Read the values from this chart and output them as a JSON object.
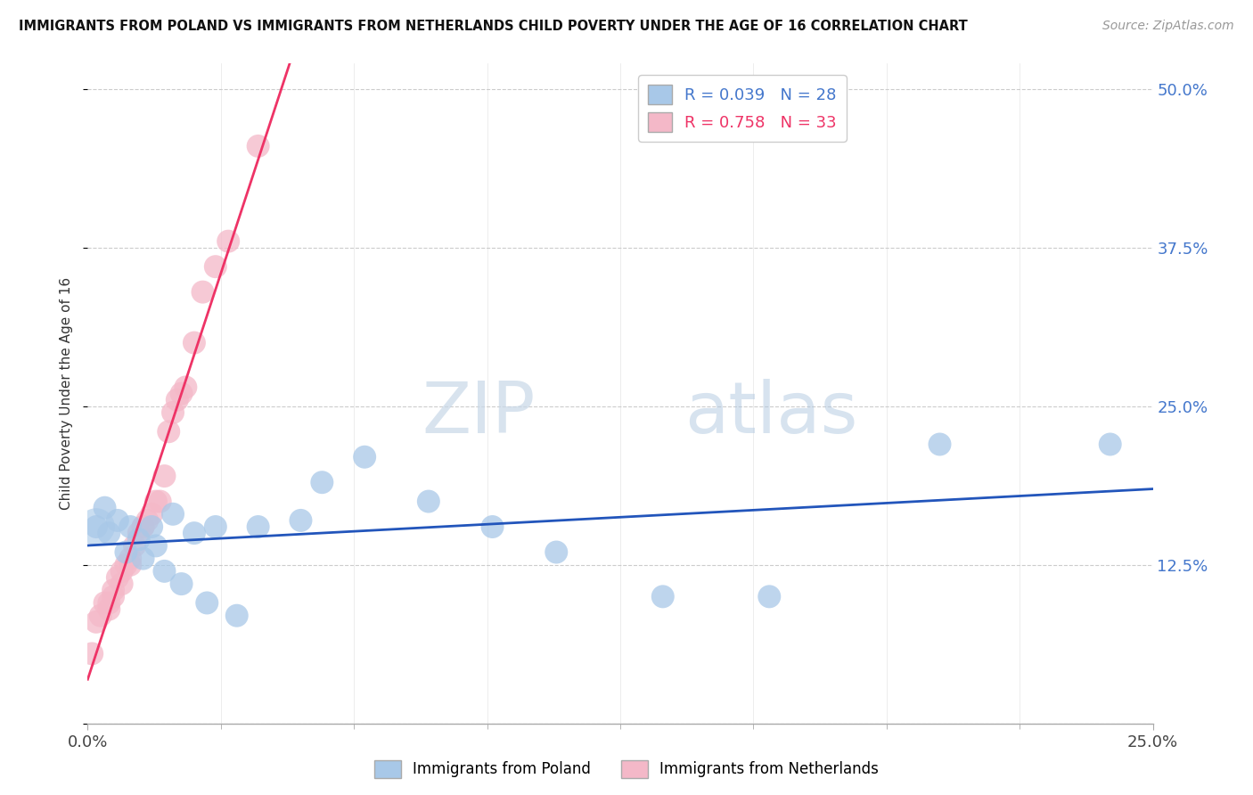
{
  "title": "IMMIGRANTS FROM POLAND VS IMMIGRANTS FROM NETHERLANDS CHILD POVERTY UNDER THE AGE OF 16 CORRELATION CHART",
  "source": "Source: ZipAtlas.com",
  "ylabel": "Child Poverty Under the Age of 16",
  "legend_label_poland": "Immigrants from Poland",
  "legend_label_netherlands": "Immigrants from Netherlands",
  "r_poland": 0.039,
  "n_poland": 28,
  "r_netherlands": 0.758,
  "n_netherlands": 33,
  "xmin": 0.0,
  "xmax": 0.25,
  "ymin": 0.0,
  "ymax": 0.52,
  "yticks": [
    0.0,
    0.125,
    0.25,
    0.375,
    0.5
  ],
  "ytick_labels": [
    "",
    "12.5%",
    "25.0%",
    "37.5%",
    "50.0%"
  ],
  "color_poland": "#a8c8e8",
  "color_netherlands": "#f4b8c8",
  "line_color_poland": "#2255bb",
  "line_color_netherlands": "#ee3366",
  "background_color": "#ffffff",
  "watermark_zip": "ZIP",
  "watermark_atlas": "atlas",
  "poland_x": [
    0.002,
    0.004,
    0.005,
    0.007,
    0.009,
    0.01,
    0.012,
    0.013,
    0.015,
    0.016,
    0.018,
    0.02,
    0.022,
    0.025,
    0.028,
    0.03,
    0.035,
    0.04,
    0.05,
    0.055,
    0.065,
    0.08,
    0.095,
    0.11,
    0.135,
    0.16,
    0.2,
    0.24
  ],
  "poland_y": [
    0.155,
    0.17,
    0.15,
    0.16,
    0.135,
    0.155,
    0.145,
    0.13,
    0.155,
    0.14,
    0.12,
    0.165,
    0.11,
    0.15,
    0.095,
    0.155,
    0.085,
    0.155,
    0.16,
    0.19,
    0.21,
    0.175,
    0.155,
    0.135,
    0.1,
    0.1,
    0.22,
    0.22
  ],
  "netherlands_x": [
    0.001,
    0.002,
    0.003,
    0.004,
    0.005,
    0.005,
    0.006,
    0.006,
    0.007,
    0.008,
    0.008,
    0.009,
    0.01,
    0.01,
    0.011,
    0.012,
    0.013,
    0.013,
    0.014,
    0.015,
    0.016,
    0.017,
    0.018,
    0.019,
    0.02,
    0.021,
    0.022,
    0.023,
    0.025,
    0.027,
    0.03,
    0.033,
    0.04
  ],
  "netherlands_y": [
    0.055,
    0.08,
    0.085,
    0.095,
    0.09,
    0.095,
    0.1,
    0.105,
    0.115,
    0.11,
    0.12,
    0.125,
    0.13,
    0.125,
    0.14,
    0.15,
    0.155,
    0.155,
    0.16,
    0.165,
    0.175,
    0.175,
    0.195,
    0.23,
    0.245,
    0.255,
    0.26,
    0.265,
    0.3,
    0.34,
    0.36,
    0.38,
    0.455
  ]
}
